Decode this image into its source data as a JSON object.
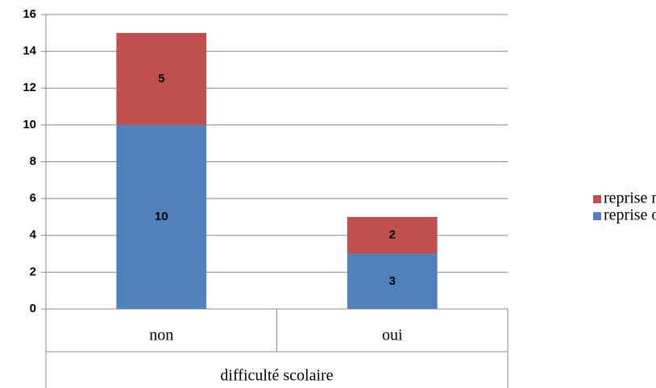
{
  "chart_data": {
    "type": "stacked_bar",
    "xlabel": "difficulté scolaire",
    "categories": [
      "non",
      "oui"
    ],
    "series": [
      {
        "name": "reprise oui",
        "color": "#4f81bd",
        "values": [
          10,
          3
        ]
      },
      {
        "name": "reprise non",
        "color": "#c0504d",
        "values": [
          5,
          2
        ]
      }
    ],
    "ylim": [
      0,
      16
    ],
    "yticks": [
      0,
      2,
      4,
      6,
      8,
      10,
      12,
      14,
      16
    ],
    "grid": true,
    "legend": "right"
  }
}
